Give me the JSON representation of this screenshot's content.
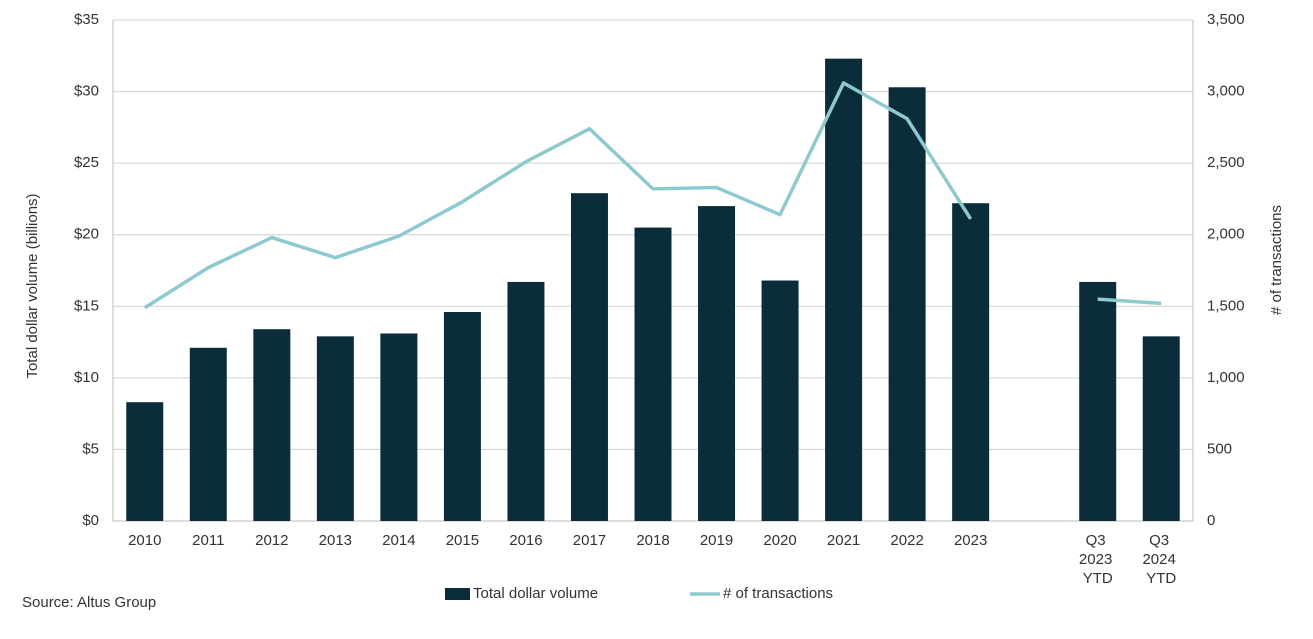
{
  "chart_data": {
    "type": "bar-line",
    "categories": [
      "2010",
      "2011",
      "2012",
      "2013",
      "2014",
      "2015",
      "2016",
      "2017",
      "2018",
      "2019",
      "2020",
      "2021",
      "2022",
      "2023",
      null,
      "Q3 2023 YTD",
      "Q3 2024 YTD"
    ],
    "series": [
      {
        "name": "Total dollar volume",
        "type": "bar",
        "color": "#0b2d3a",
        "values": [
          8.3,
          12.1,
          13.4,
          12.9,
          13.1,
          14.6,
          16.7,
          22.9,
          20.5,
          22.0,
          16.8,
          32.3,
          30.3,
          22.2,
          null,
          16.7,
          12.9
        ]
      },
      {
        "name": "# of transactions",
        "type": "line",
        "axis": "y2",
        "color": "#8ec9d0",
        "values": [
          1490,
          1770,
          1980,
          1840,
          1990,
          2230,
          2510,
          2740,
          2320,
          2330,
          2140,
          3060,
          2810,
          2110,
          null,
          1550,
          1520
        ]
      }
    ],
    "ylabel": "Total dollar volume (billions)",
    "y2label": "# of transactions",
    "ylim": [
      0,
      35
    ],
    "yticks": [
      {
        "value": 0,
        "label": "$0"
      },
      {
        "value": 5,
        "label": "$5"
      },
      {
        "value": 10,
        "label": "$10"
      },
      {
        "value": 15,
        "label": "$15"
      },
      {
        "value": 20,
        "label": "$20"
      },
      {
        "value": 25,
        "label": "$25"
      },
      {
        "value": 30,
        "label": "$30"
      },
      {
        "value": 35,
        "label": "$35"
      }
    ],
    "y2lim": [
      0,
      3500
    ],
    "y2ticks": [
      0,
      500,
      {
        "value": 1000,
        "label": "1,000"
      },
      {
        "value": 1500,
        "label": "1,500"
      },
      {
        "value": 2000,
        "label": "2,000"
      },
      {
        "value": 2500,
        "label": "2,500"
      },
      {
        "value": 3000,
        "label": "3,000"
      },
      {
        "value": 3500,
        "label": "3,500"
      }
    ],
    "grid": true,
    "legend": "bottom",
    "source": "Source:  Altus Group"
  }
}
